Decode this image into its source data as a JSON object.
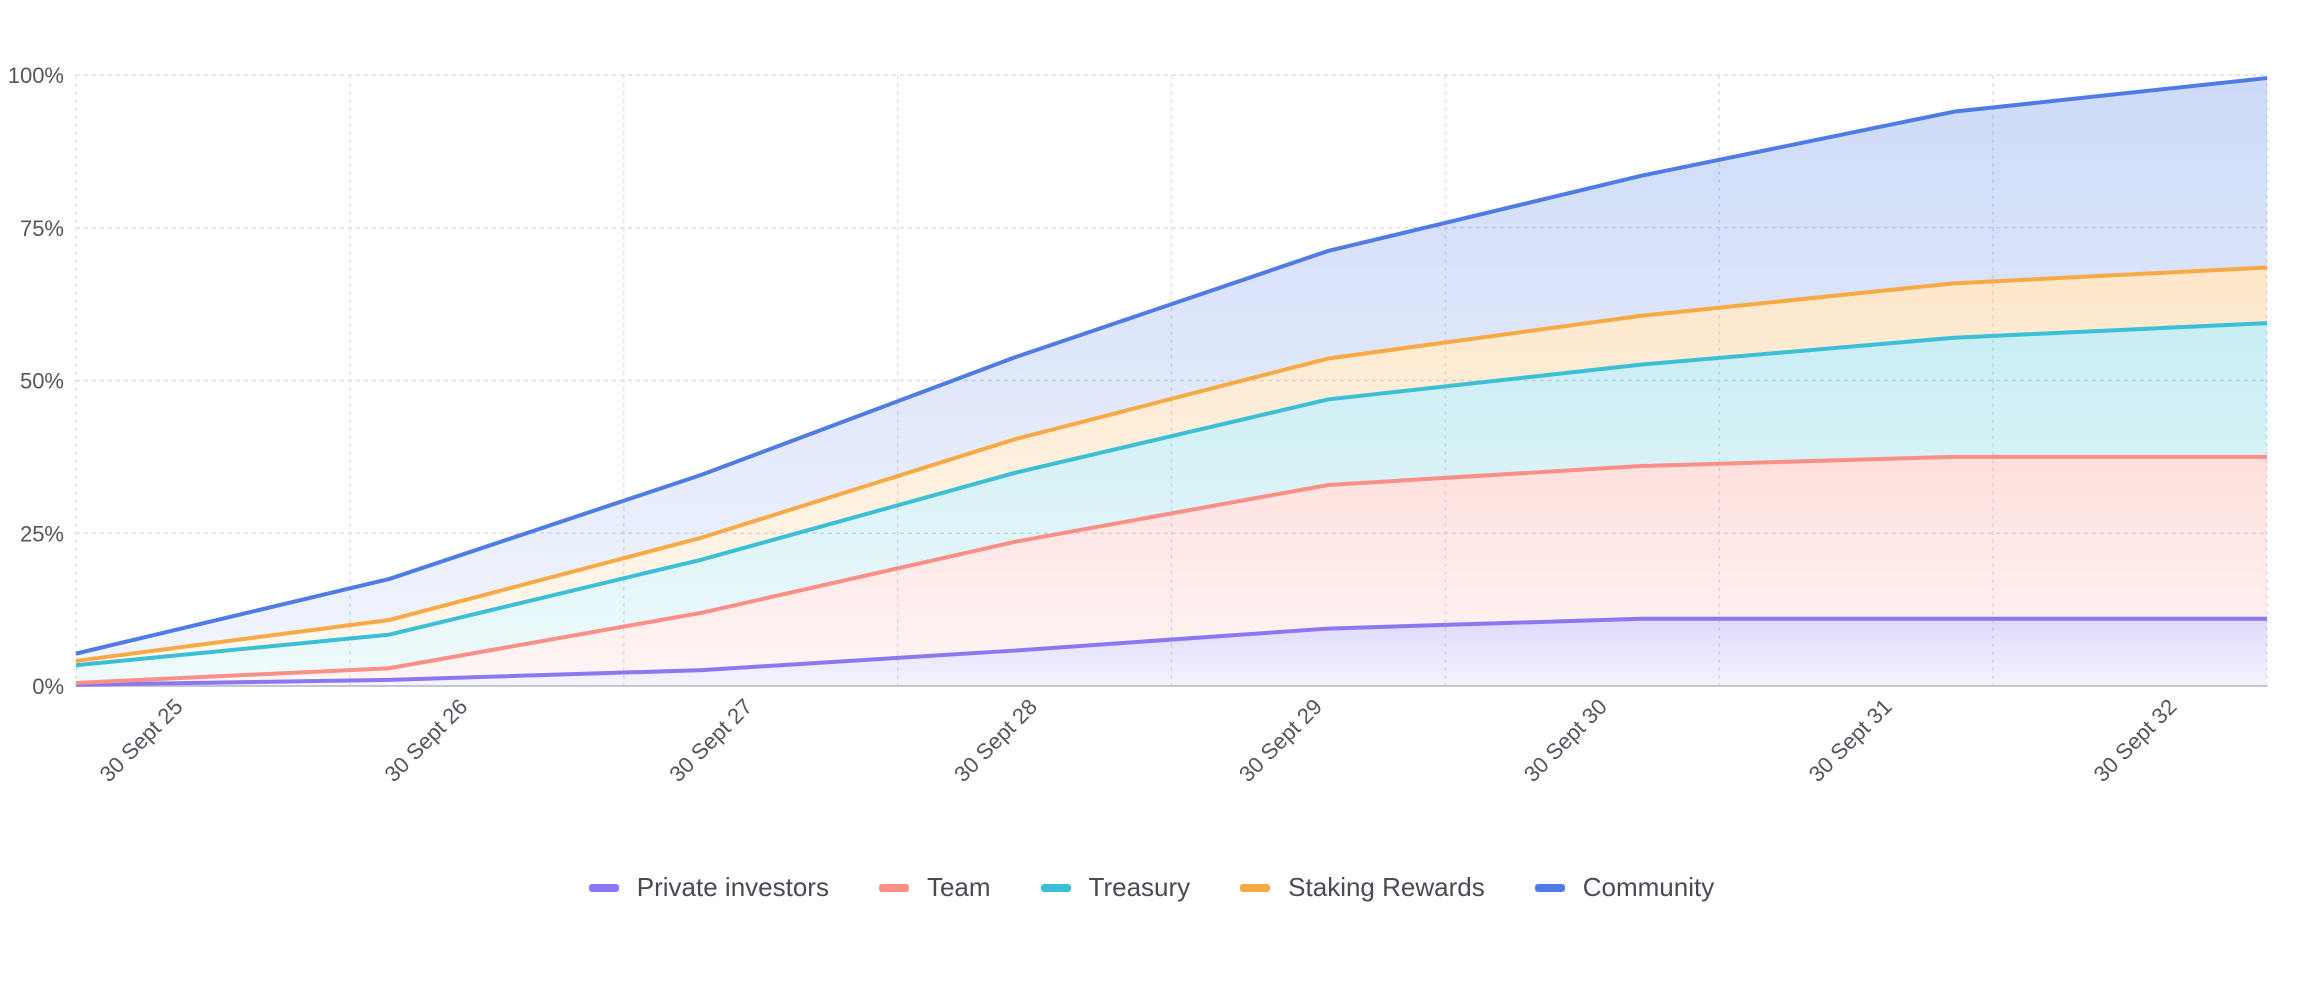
{
  "chart_data": {
    "type": "area",
    "stacked": true,
    "categories": [
      "30 Sept 25",
      "30 Sept 26",
      "30 Sept 27",
      "30 Sept 28",
      "30 Sept 29",
      "30 Sept 30",
      "30 Sept 31",
      "30 Sept 32"
    ],
    "y_ticks": [
      "0%",
      "25%",
      "50%",
      "75%",
      "100%"
    ],
    "ylim": [
      0,
      100
    ],
    "grid": true,
    "legend_position": "bottom",
    "series": [
      {
        "name": "Private investors",
        "color": "#8b77f0",
        "values": [
          0.2,
          1,
          2.6,
          5.8,
          9.4,
          11,
          11,
          11
        ]
      },
      {
        "name": "Team",
        "color": "#f98f86",
        "values": [
          0.3,
          1.9,
          9.4,
          17.8,
          23.5,
          25,
          26.5,
          26.5
        ]
      },
      {
        "name": "Treasury",
        "color": "#3bbfd6",
        "values": [
          2.9,
          5.5,
          8.7,
          11.3,
          14,
          16.6,
          19.5,
          21.9
        ]
      },
      {
        "name": "Staking Rewards",
        "color": "#f7a944",
        "values": [
          0.7,
          2.4,
          3.6,
          5.5,
          6.7,
          8,
          8.9,
          9.1
        ]
      },
      {
        "name": "Community",
        "color": "#4f7be6",
        "values": [
          1.2,
          6.7,
          10.3,
          13.4,
          17.6,
          22.9,
          28.1,
          31
        ]
      }
    ]
  }
}
